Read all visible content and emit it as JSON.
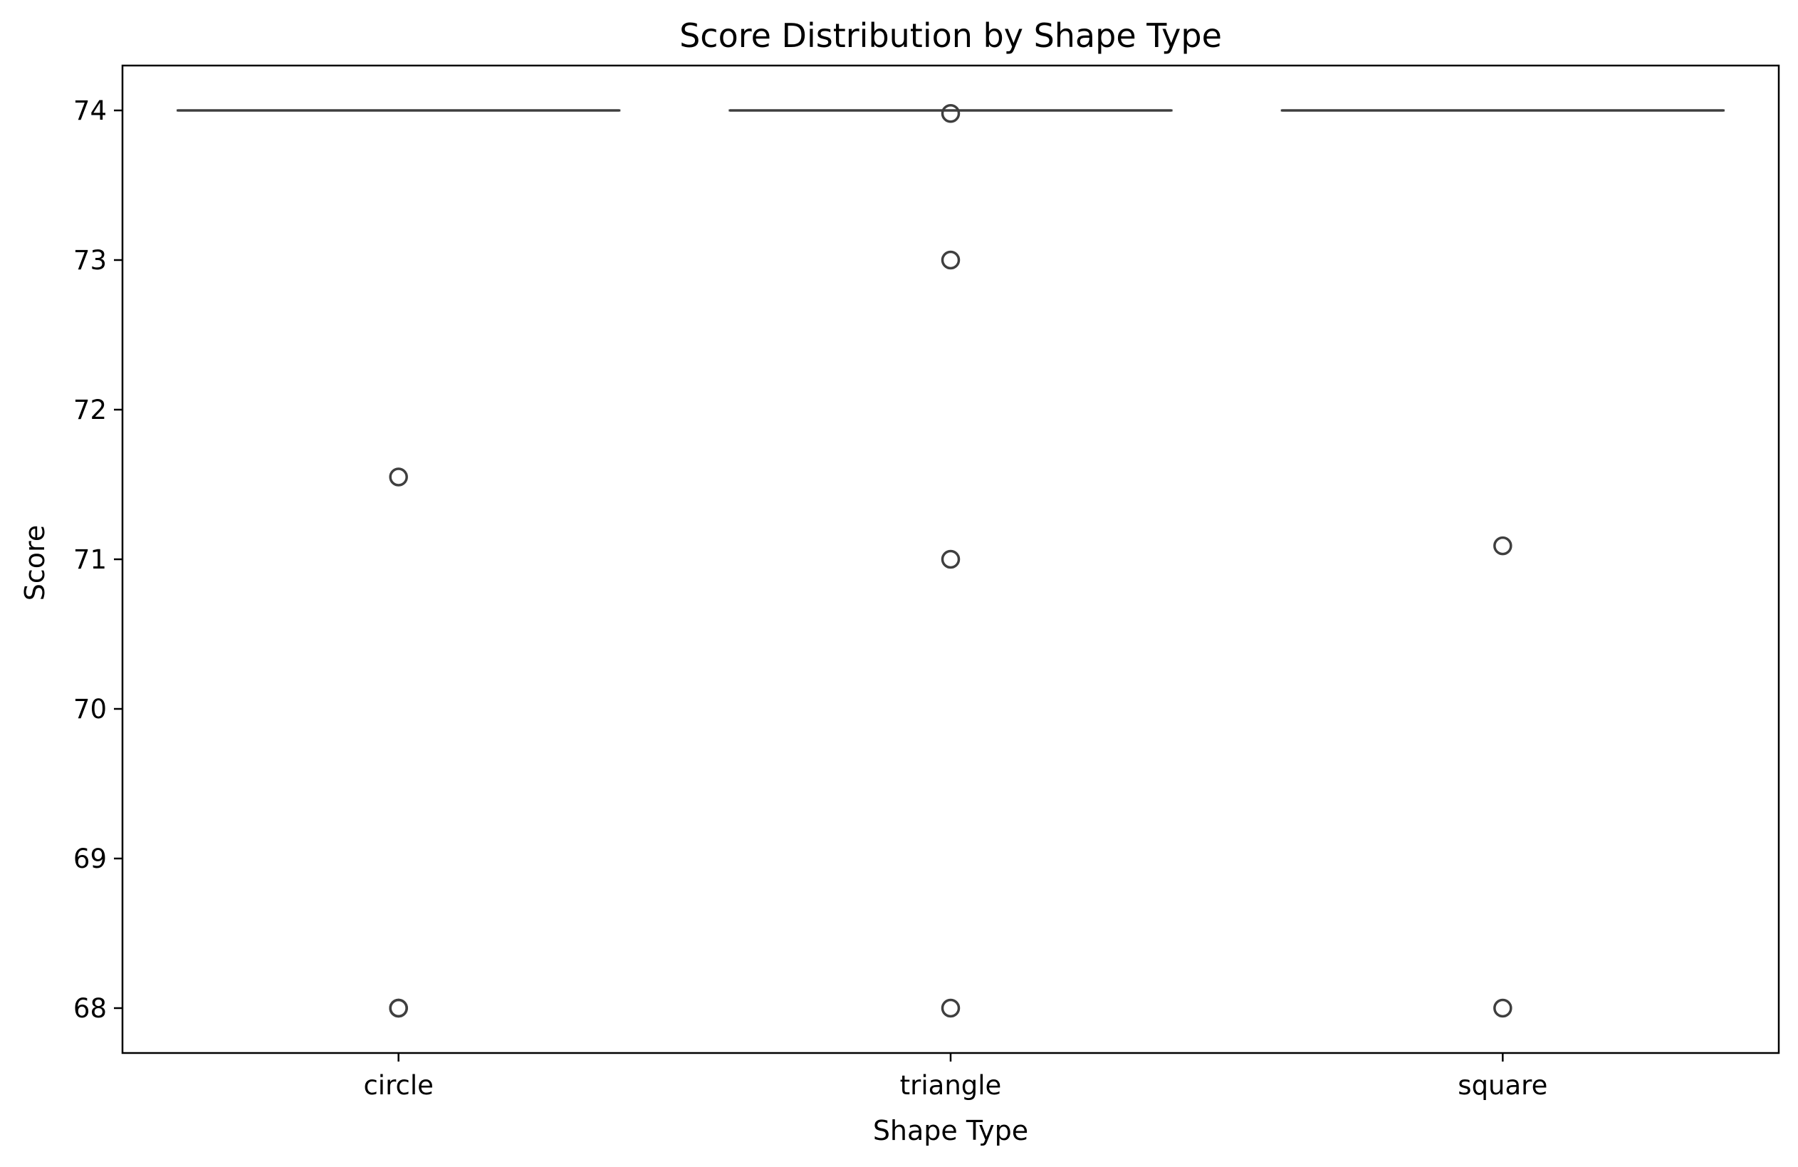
{
  "chart_data": {
    "type": "box",
    "title": "Score Distribution by Shape Type",
    "xlabel": "Shape Type",
    "ylabel": "Score",
    "categories": [
      "circle",
      "triangle",
      "square"
    ],
    "ylim": [
      67.7,
      74.3
    ],
    "yticks": [
      68,
      69,
      70,
      71,
      72,
      73,
      74
    ],
    "grid": false,
    "legend": "none",
    "boxes": [
      {
        "category": "circle",
        "q1": 74,
        "median": 74,
        "q3": 74,
        "whisker_low": 74,
        "whisker_high": 74,
        "outliers": [
          71.55,
          68,
          68
        ]
      },
      {
        "category": "triangle",
        "q1": 74,
        "median": 74,
        "q3": 74,
        "whisker_low": 74,
        "whisker_high": 74,
        "outliers": [
          73.98,
          73,
          71,
          68
        ]
      },
      {
        "category": "square",
        "q1": 74,
        "median": 74,
        "q3": 74,
        "whisker_low": 74,
        "whisker_high": 74,
        "outliers": [
          71.09,
          68
        ]
      }
    ],
    "colors": {
      "box_line": "#3f3f3f",
      "axis": "#000000",
      "background": "#ffffff"
    }
  }
}
